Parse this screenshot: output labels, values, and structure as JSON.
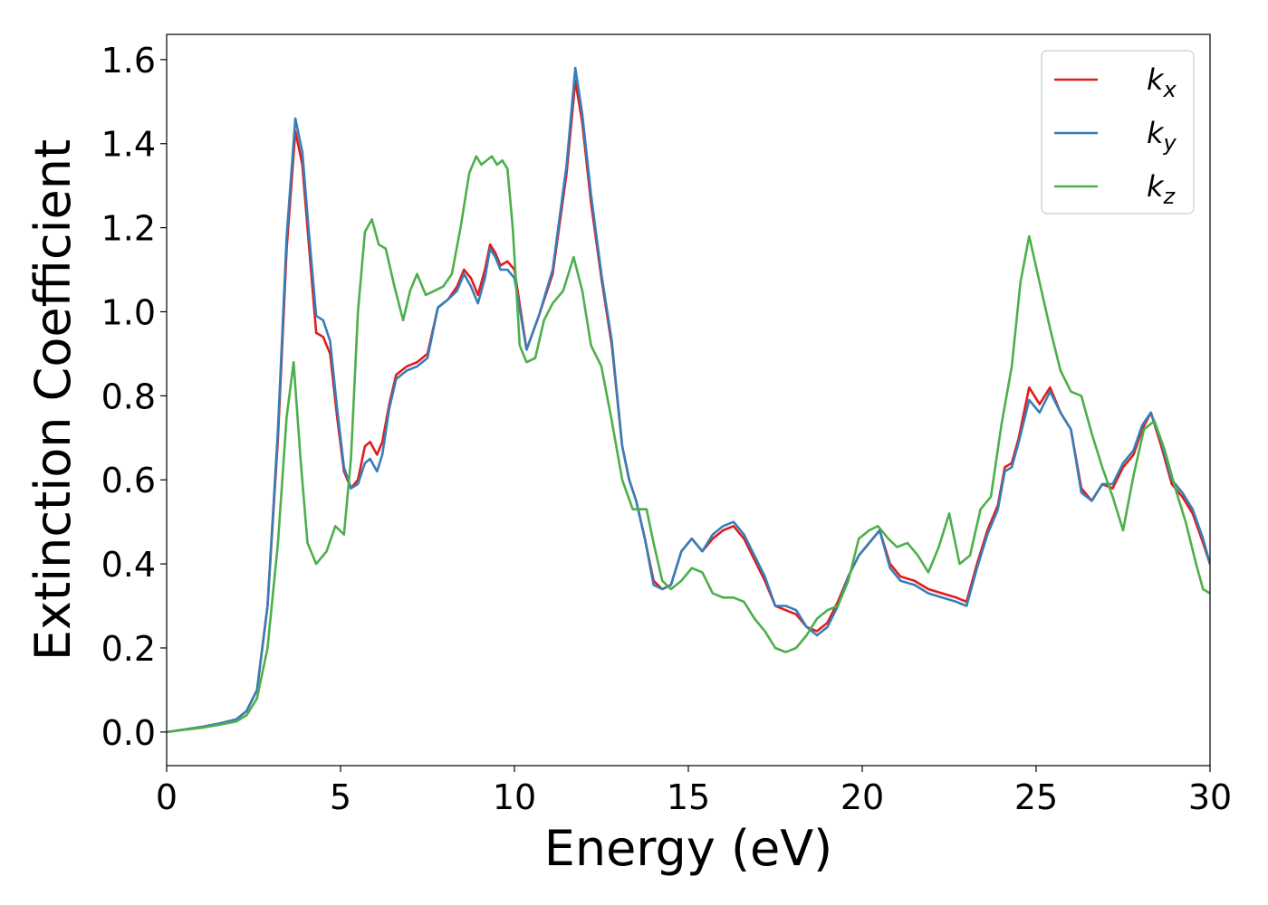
{
  "chart_data": {
    "type": "line",
    "xlabel": "Energy (eV)",
    "ylabel": "Extinction Coefficient",
    "xlim": [
      0,
      30
    ],
    "ylim": [
      -0.08,
      1.66
    ],
    "xticks": [
      "0",
      "5",
      "10",
      "15",
      "20",
      "25",
      "30"
    ],
    "yticks": [
      "0.0",
      "0.2",
      "0.4",
      "0.6",
      "0.8",
      "1.0",
      "1.2",
      "1.4",
      "1.6"
    ],
    "grid": false,
    "legend_position": "top-right",
    "series": [
      {
        "name": "k",
        "subscript": "x",
        "color": "#e41a1c",
        "x": [
          0,
          0.5,
          1,
          1.5,
          2,
          2.3,
          2.6,
          2.9,
          3.2,
          3.45,
          3.7,
          3.9,
          4.1,
          4.3,
          4.5,
          4.7,
          4.9,
          5.1,
          5.3,
          5.5,
          5.7,
          5.85,
          6.05,
          6.2,
          6.4,
          6.6,
          6.9,
          7.2,
          7.5,
          7.8,
          8.1,
          8.35,
          8.55,
          8.75,
          8.95,
          9.15,
          9.3,
          9.45,
          9.6,
          9.8,
          10,
          10.35,
          10.7,
          11.1,
          11.5,
          11.75,
          11.95,
          12.2,
          12.5,
          12.8,
          13.1,
          13.3,
          13.5,
          13.75,
          14,
          14.25,
          14.5,
          14.8,
          15.1,
          15.4,
          15.7,
          16,
          16.3,
          16.6,
          16.9,
          17.2,
          17.5,
          17.8,
          18.1,
          18.4,
          18.7,
          19,
          19.3,
          19.6,
          19.9,
          20.2,
          20.5,
          20.8,
          21.1,
          21.5,
          21.9,
          22.3,
          22.7,
          23,
          23.3,
          23.6,
          23.9,
          24.1,
          24.3,
          24.5,
          24.8,
          25.1,
          25.4,
          25.7,
          26,
          26.3,
          26.6,
          26.9,
          27.2,
          27.5,
          27.8,
          28.05,
          28.3,
          28.6,
          28.9,
          29.2,
          29.5,
          29.8,
          30
        ],
        "y": [
          0,
          0.006,
          0.012,
          0.02,
          0.03,
          0.05,
          0.1,
          0.3,
          0.7,
          1.15,
          1.43,
          1.35,
          1.15,
          0.95,
          0.94,
          0.9,
          0.75,
          0.62,
          0.58,
          0.6,
          0.68,
          0.69,
          0.66,
          0.69,
          0.78,
          0.85,
          0.87,
          0.88,
          0.9,
          1.01,
          1.03,
          1.06,
          1.1,
          1.08,
          1.04,
          1.1,
          1.16,
          1.14,
          1.11,
          1.12,
          1.1,
          0.91,
          0.99,
          1.09,
          1.33,
          1.55,
          1.45,
          1.26,
          1.08,
          0.92,
          0.68,
          0.6,
          0.55,
          0.46,
          0.36,
          0.34,
          0.35,
          0.43,
          0.46,
          0.43,
          0.46,
          0.48,
          0.49,
          0.46,
          0.41,
          0.36,
          0.3,
          0.29,
          0.28,
          0.25,
          0.24,
          0.26,
          0.31,
          0.37,
          0.42,
          0.45,
          0.48,
          0.4,
          0.37,
          0.36,
          0.34,
          0.33,
          0.32,
          0.31,
          0.4,
          0.48,
          0.54,
          0.63,
          0.64,
          0.7,
          0.82,
          0.78,
          0.82,
          0.76,
          0.72,
          0.58,
          0.55,
          0.59,
          0.58,
          0.63,
          0.66,
          0.72,
          0.76,
          0.68,
          0.59,
          0.56,
          0.52,
          0.45,
          0.4
        ]
      },
      {
        "name": "k",
        "subscript": "y",
        "color": "#377eb8",
        "x": [
          0,
          0.5,
          1,
          1.5,
          2,
          2.3,
          2.6,
          2.9,
          3.2,
          3.45,
          3.7,
          3.9,
          4.1,
          4.3,
          4.5,
          4.7,
          4.9,
          5.1,
          5.3,
          5.5,
          5.7,
          5.85,
          6.05,
          6.2,
          6.4,
          6.6,
          6.9,
          7.2,
          7.5,
          7.8,
          8.1,
          8.35,
          8.55,
          8.75,
          8.95,
          9.15,
          9.3,
          9.45,
          9.6,
          9.8,
          10,
          10.35,
          10.7,
          11.1,
          11.5,
          11.75,
          11.95,
          12.2,
          12.5,
          12.8,
          13.1,
          13.3,
          13.5,
          13.75,
          14,
          14.25,
          14.5,
          14.8,
          15.1,
          15.4,
          15.7,
          16,
          16.3,
          16.6,
          16.9,
          17.2,
          17.5,
          17.8,
          18.1,
          18.4,
          18.7,
          19,
          19.3,
          19.6,
          19.9,
          20.2,
          20.5,
          20.8,
          21.1,
          21.5,
          21.9,
          22.3,
          22.7,
          23,
          23.3,
          23.6,
          23.9,
          24.1,
          24.3,
          24.5,
          24.8,
          25.1,
          25.4,
          25.7,
          26,
          26.3,
          26.6,
          26.9,
          27.2,
          27.5,
          27.8,
          28.05,
          28.3,
          28.6,
          28.9,
          29.2,
          29.5,
          29.8,
          30
        ],
        "y": [
          0,
          0.006,
          0.012,
          0.02,
          0.03,
          0.05,
          0.1,
          0.3,
          0.72,
          1.18,
          1.46,
          1.38,
          1.18,
          0.99,
          0.98,
          0.93,
          0.77,
          0.63,
          0.58,
          0.59,
          0.64,
          0.65,
          0.62,
          0.66,
          0.77,
          0.84,
          0.86,
          0.87,
          0.89,
          1.01,
          1.03,
          1.05,
          1.09,
          1.06,
          1.02,
          1.08,
          1.15,
          1.13,
          1.1,
          1.1,
          1.08,
          0.91,
          0.99,
          1.1,
          1.35,
          1.58,
          1.47,
          1.28,
          1.09,
          0.93,
          0.68,
          0.6,
          0.55,
          0.46,
          0.35,
          0.34,
          0.35,
          0.43,
          0.46,
          0.43,
          0.47,
          0.49,
          0.5,
          0.47,
          0.42,
          0.37,
          0.3,
          0.3,
          0.29,
          0.25,
          0.23,
          0.25,
          0.3,
          0.37,
          0.42,
          0.45,
          0.48,
          0.39,
          0.36,
          0.35,
          0.33,
          0.32,
          0.31,
          0.3,
          0.39,
          0.47,
          0.53,
          0.62,
          0.63,
          0.69,
          0.79,
          0.76,
          0.81,
          0.76,
          0.72,
          0.57,
          0.55,
          0.59,
          0.59,
          0.64,
          0.67,
          0.73,
          0.76,
          0.69,
          0.6,
          0.57,
          0.53,
          0.46,
          0.4
        ]
      },
      {
        "name": "k",
        "subscript": "z",
        "color": "#4daf4a",
        "x": [
          0,
          0.5,
          1,
          1.5,
          2,
          2.3,
          2.6,
          2.9,
          3.2,
          3.45,
          3.65,
          3.85,
          4.05,
          4.3,
          4.6,
          4.85,
          5.1,
          5.3,
          5.5,
          5.7,
          5.9,
          6.1,
          6.3,
          6.55,
          6.8,
          7,
          7.2,
          7.45,
          7.7,
          7.95,
          8.2,
          8.45,
          8.7,
          8.9,
          9.05,
          9.2,
          9.35,
          9.5,
          9.65,
          9.8,
          9.95,
          10.15,
          10.35,
          10.6,
          10.85,
          11.1,
          11.4,
          11.7,
          11.95,
          12.2,
          12.5,
          12.8,
          13.1,
          13.4,
          13.6,
          13.8,
          14,
          14.25,
          14.5,
          14.8,
          15.1,
          15.4,
          15.7,
          16,
          16.3,
          16.6,
          16.9,
          17.2,
          17.5,
          17.8,
          18.1,
          18.4,
          18.7,
          19,
          19.3,
          19.6,
          19.9,
          20.2,
          20.45,
          20.75,
          21,
          21.3,
          21.6,
          21.9,
          22.2,
          22.5,
          22.8,
          23.1,
          23.4,
          23.7,
          24,
          24.3,
          24.55,
          24.8,
          25.1,
          25.4,
          25.7,
          26,
          26.3,
          26.6,
          26.9,
          27.2,
          27.5,
          27.8,
          28.1,
          28.4,
          28.7,
          29,
          29.3,
          29.6,
          29.8,
          30
        ],
        "y": [
          0,
          0.005,
          0.01,
          0.017,
          0.025,
          0.04,
          0.08,
          0.2,
          0.45,
          0.75,
          0.88,
          0.65,
          0.45,
          0.4,
          0.43,
          0.49,
          0.47,
          0.65,
          1.0,
          1.19,
          1.22,
          1.16,
          1.15,
          1.06,
          0.98,
          1.05,
          1.09,
          1.04,
          1.05,
          1.06,
          1.09,
          1.2,
          1.33,
          1.37,
          1.35,
          1.36,
          1.37,
          1.35,
          1.36,
          1.34,
          1.2,
          0.92,
          0.88,
          0.89,
          0.98,
          1.02,
          1.05,
          1.13,
          1.05,
          0.92,
          0.87,
          0.74,
          0.6,
          0.53,
          0.53,
          0.53,
          0.45,
          0.36,
          0.34,
          0.36,
          0.39,
          0.38,
          0.33,
          0.32,
          0.32,
          0.31,
          0.27,
          0.24,
          0.2,
          0.19,
          0.2,
          0.23,
          0.27,
          0.29,
          0.3,
          0.36,
          0.46,
          0.48,
          0.49,
          0.46,
          0.44,
          0.45,
          0.42,
          0.38,
          0.44,
          0.52,
          0.4,
          0.42,
          0.53,
          0.56,
          0.73,
          0.87,
          1.07,
          1.18,
          1.07,
          0.96,
          0.86,
          0.81,
          0.8,
          0.71,
          0.63,
          0.56,
          0.48,
          0.61,
          0.72,
          0.74,
          0.67,
          0.58,
          0.5,
          0.4,
          0.34,
          0.33
        ]
      }
    ]
  }
}
